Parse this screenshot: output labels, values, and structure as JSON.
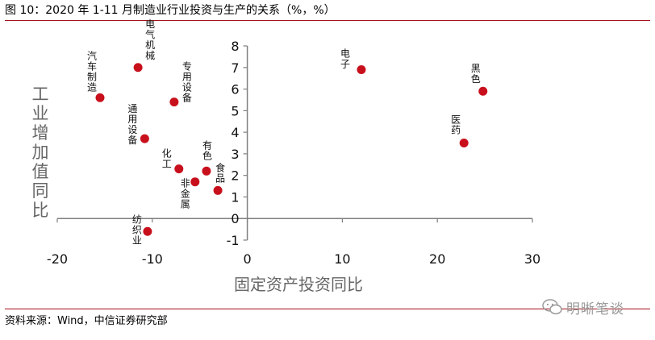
{
  "figure": {
    "title": "图 10：2020 年 1-11 月制造业行业投资与生产的关系（%，%）",
    "source": "资料来源：Wind，中信证券研究部",
    "watermark": "明晰笔谈",
    "rule_color": "#a3111a",
    "watermark_icon": "wechat-icon"
  },
  "chart_data": {
    "type": "scatter",
    "title": "",
    "xlabel": "固定资产投资同比",
    "ylabel": "工业增加值同比",
    "xlim": [
      -20,
      30
    ],
    "ylim": [
      -1,
      8
    ],
    "xticks": [
      "-20",
      "-10",
      "0",
      "10",
      "20",
      "30"
    ],
    "yticks": [
      "-1",
      "0",
      "1",
      "2",
      "3",
      "4",
      "5",
      "6",
      "7",
      "8"
    ],
    "grid": false,
    "legend": "none",
    "marker_color": "#c8101c",
    "series": [
      {
        "points": [
          {
            "label": "电气机械",
            "x": -11.5,
            "y": 7.0
          },
          {
            "label": "汽车制造",
            "x": -15.5,
            "y": 5.6
          },
          {
            "label": "专用设备",
            "x": -7.7,
            "y": 5.4
          },
          {
            "label": "通用设备",
            "x": -10.8,
            "y": 3.7
          },
          {
            "label": "化工",
            "x": -7.2,
            "y": 2.3
          },
          {
            "label": "有色",
            "x": -4.3,
            "y": 2.2
          },
          {
            "label": "非金属",
            "x": -5.5,
            "y": 1.7
          },
          {
            "label": "食品",
            "x": -3.1,
            "y": 1.3
          },
          {
            "label": "纺织业",
            "x": -10.5,
            "y": -0.6
          },
          {
            "label": "电子",
            "x": 12.0,
            "y": 6.9
          },
          {
            "label": "黑色",
            "x": 24.8,
            "y": 5.9
          },
          {
            "label": "医药",
            "x": 22.8,
            "y": 3.5
          }
        ]
      }
    ]
  }
}
